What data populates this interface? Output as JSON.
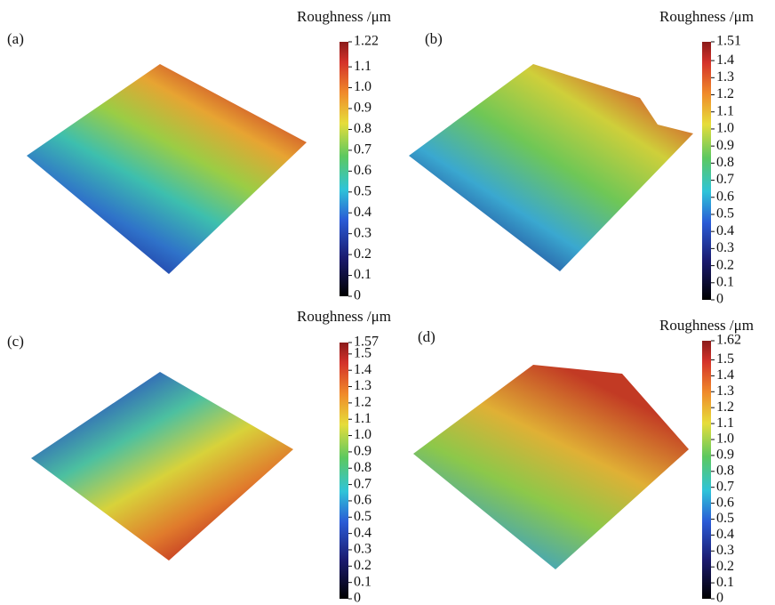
{
  "panels": [
    {
      "label": "(a)",
      "colorbar": {
        "title": "Roughness /μm",
        "ticks": [
          0,
          0.1,
          0.2,
          0.3,
          0.4,
          0.5,
          0.6,
          0.7,
          0.8,
          0.9,
          {
            "value": 1,
            "label": "1.0"
          },
          1.1,
          1.22
        ]
      }
    },
    {
      "label": "(b)",
      "colorbar": {
        "title": "Roughness /μm",
        "ticks": [
          0,
          0.1,
          0.2,
          0.3,
          0.4,
          0.5,
          0.6,
          0.7,
          0.8,
          0.9,
          {
            "value": 1,
            "label": "1.0"
          },
          1.1,
          1.2,
          1.3,
          1.4,
          1.51
        ]
      }
    },
    {
      "label": "(c)",
      "colorbar": {
        "title": "Roughness /μm",
        "ticks": [
          0,
          0.1,
          0.2,
          0.3,
          0.4,
          0.5,
          0.6,
          0.7,
          0.8,
          0.9,
          {
            "value": 1,
            "label": "1.0"
          },
          1.1,
          1.2,
          1.3,
          1.4,
          1.5,
          1.57
        ]
      }
    },
    {
      "label": "(d)",
      "colorbar": {
        "title": "Roughness /μm",
        "ticks": [
          0,
          0.1,
          0.2,
          0.3,
          0.4,
          0.5,
          0.6,
          0.7,
          0.8,
          0.9,
          {
            "value": 1,
            "label": "1.0"
          },
          1.1,
          1.2,
          1.3,
          1.4,
          1.5,
          1.62
        ]
      }
    }
  ]
}
